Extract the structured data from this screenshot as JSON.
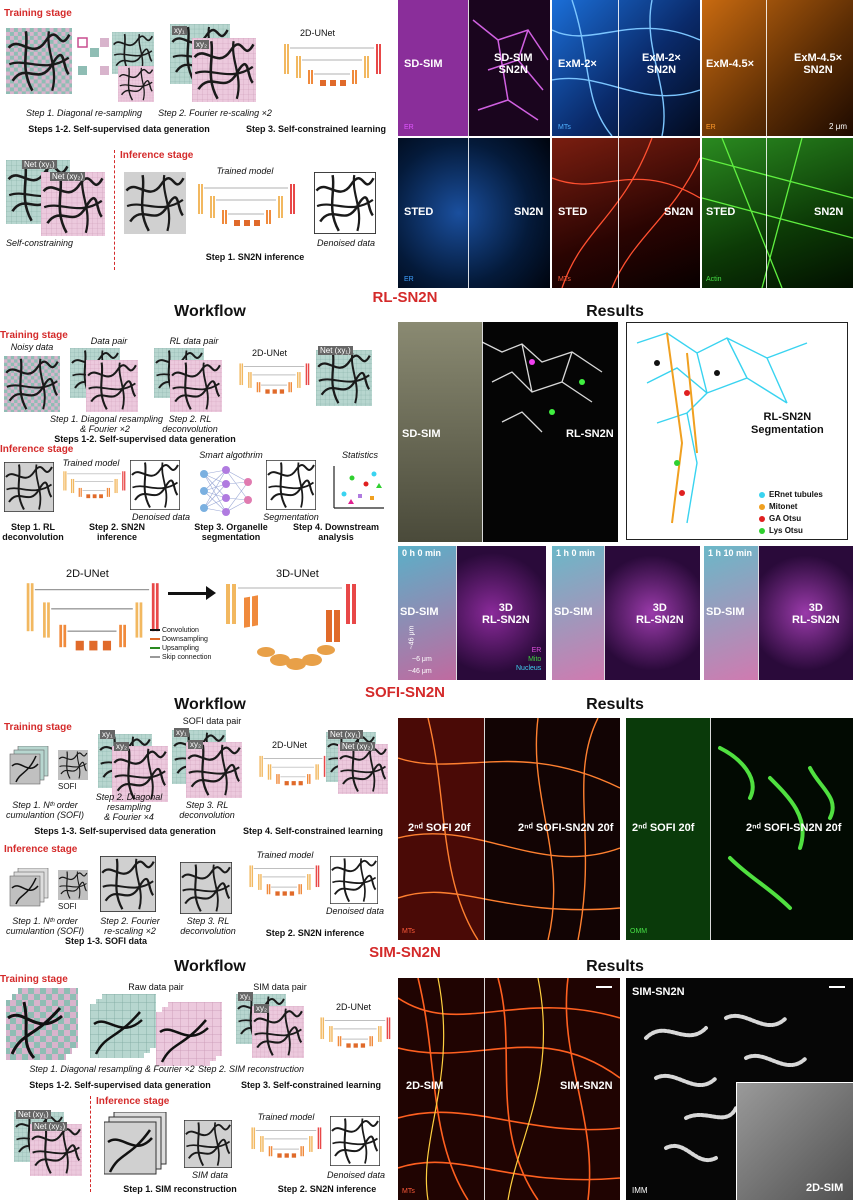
{
  "sn2n": {
    "training_stage": "Training stage",
    "step1_2_cap1": "Step 1. Diagonal re-sampling",
    "step1_2_cap2": "Step 2. Fourier re-scaling ×2",
    "step1_2_bold": "Steps 1-2. Self-supervised data generation",
    "step3_bold": "Step 3. Self-constrained learning",
    "unet": "2D-UNet",
    "net1": "Net (xy₁)",
    "net2": "Net (xy₂)",
    "xy1": "xy₁",
    "xy2": "xy₂",
    "self_constraining": "Self-constraining",
    "inference_stage": "Inference stage",
    "trained_model": "Trained model",
    "denoised": "Denoised data",
    "step1_inference": "Step 1. SN2N inference"
  },
  "top_panels": [
    {
      "left": "SD-SIM",
      "right": "SD-SIM\nSN2N",
      "tag": "ER",
      "tag_color": "#e056ff"
    },
    {
      "left": "ExM-2×",
      "right": "ExM-2×\nSN2N",
      "tag": "MTs",
      "tag_color": "#4fb0ff"
    },
    {
      "left": "ExM-4.5×",
      "right": "ExM-4.5×\nSN2N",
      "tag": "ER",
      "tag_color": "#ff9a2b",
      "scale": "2 μm"
    },
    {
      "left": "STED",
      "right": "SN2N",
      "tag": "ER",
      "tag_color": "#3fa0ff"
    },
    {
      "left": "STED",
      "right": "SN2N",
      "tag": "MTs",
      "tag_color": "#ff5a3a"
    },
    {
      "left": "STED",
      "right": "SN2N",
      "tag": "Actin",
      "tag_color": "#46e046"
    }
  ],
  "rl": {
    "title": "RL-SN2N",
    "workflow": "Workflow",
    "results": "Results",
    "training_stage": "Training stage",
    "noisy": "Noisy data",
    "data_pair": "Data pair",
    "rl_data_pair": "RL data pair",
    "unet": "2D-UNet",
    "net1": "Net (xy₁)",
    "step1_cap": "Step 1. Diagonal resampling\n& Fourier ×2",
    "step2_cap": "Step 2. RL\ndeconvolution",
    "steps_bold": "Steps 1-2. Self-supervised data generation",
    "inference_stage": "Inference stage",
    "trained_model": "Trained model",
    "smart": "Smart algothrim",
    "denoised": "Denoised data",
    "segmentation": "Segmentation",
    "statistics": "Statistics",
    "inf_step1": "Step 1. RL\ndeconvolution",
    "inf_step2": "Step 2. SN2N\ninference",
    "inf_step3": "Step 3. Organelle\nsegmentation",
    "inf_step4": "Step 4. Downstream\nanalysis",
    "unet2d": "2D-UNet",
    "unet3d": "3D-UNet",
    "legend_conv": "Convolution",
    "legend_down": "Downsampling",
    "legend_up": "Upsampling",
    "legend_skip": "Skip connection",
    "img_left": "SD-SIM",
    "img_right": "RL-SN2N",
    "seg_label": "RL-SN2N\nSegmentation",
    "seg_legend": [
      {
        "label": "ERnet tubules",
        "color": "#39d3f0"
      },
      {
        "label": "Mitonet",
        "color": "#f0a020"
      },
      {
        "label": "GA Otsu",
        "color": "#e02020"
      },
      {
        "label": "Lys Otsu",
        "color": "#30d030"
      }
    ],
    "time_panels": [
      {
        "time": "0 h 0 min",
        "left": "SD-SIM",
        "right": "3D\nRL-SN2N"
      },
      {
        "time": "1 h 0 min",
        "left": "SD-SIM",
        "right": "3D\nRL-SN2N"
      },
      {
        "time": "1 h 10 min",
        "left": "SD-SIM",
        "right": "3D\nRL-SN2N"
      }
    ],
    "axes": {
      "z": "~6 μm",
      "y": "~46 μm",
      "x": "~46 μm"
    },
    "channels": [
      {
        "label": "ER",
        "color": "#e050e0"
      },
      {
        "label": "Mito",
        "color": "#40d040"
      },
      {
        "label": "Nucleus",
        "color": "#40d0f0"
      }
    ]
  },
  "sofi": {
    "title": "SOFI-SN2N",
    "workflow": "Workflow",
    "results": "Results",
    "training_stage": "Training stage",
    "sofi": "SOFI",
    "sofi_pair": "SOFI data pair",
    "unet": "2D-UNet",
    "net1": "Net (xy₁)",
    "net2": "Net (xy₂)",
    "xy1": "xy₁",
    "xy2": "xy₂",
    "step1": "Step 1. Nᵗʰ order\ncumulantion (SOFI)",
    "step2": "Step 2. Diagonal\nresampling\n& Fourier ×4",
    "step3": "Step 3. RL\ndeconvolution",
    "steps_bold": "Steps 1-3. Self-supervised data generation",
    "step4_bold": "Step 4. Self-constrained learning",
    "inference_stage": "Inference stage",
    "inf_step1": "Step 1. Nᵗʰ order\ncumulantion (SOFI)",
    "inf_step2": "Step 2. Fourier\nre-scaling ×2",
    "inf_step3": "Step 3. RL\ndeconvolution",
    "inf_bold1": "Step 1-3. SOFI data",
    "inf_bold2": "Step 2. SN2N inference",
    "trained_model": "Trained model",
    "denoised": "Denoised data",
    "img1_left": "2ⁿᵈ SOFI 20f",
    "img1_right": "2ⁿᵈ SOFI-SN2N 20f",
    "img1_tag": "MTs",
    "img2_left": "2ⁿᵈ SOFI 20f",
    "img2_right": "2ⁿᵈ SOFI-SN2N 20f",
    "img2_tag": "OMM"
  },
  "sim": {
    "title": "SIM-SN2N",
    "workflow": "Workflow",
    "results": "Results",
    "training_stage": "Training stage",
    "raw_pair": "Raw data pair",
    "sim_pair": "SIM data pair",
    "unet": "2D-UNet",
    "xy1": "xy₁",
    "xy2": "xy₂",
    "net1": "Net (xy₁)",
    "net2": "Net (xy₂)",
    "step1_cap": "Step 1. Diagonal resampling & Fourier ×2",
    "step2_cap": "Step 2. SIM reconstruction",
    "steps_bold": "Steps 1-2. Self-supervised data generation",
    "step3_bold": "Step 3. Self-constrained learning",
    "inference_stage": "Inference stage",
    "sim_data": "SIM data",
    "trained_model": "Trained model",
    "denoised": "Denoised data",
    "inf_bold1": "Step 1. SIM reconstruction",
    "inf_bold2": "Step 2. SN2N inference",
    "img1_left": "2D-SIM",
    "img1_right": "SIM-SN2N",
    "img1_tag": "MTs",
    "img2_title": "SIM-SN2N",
    "img2_tag": "IMM",
    "img2_inset": "2D-SIM"
  }
}
